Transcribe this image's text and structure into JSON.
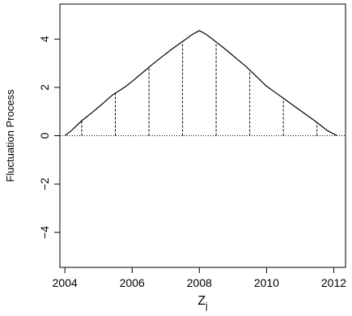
{
  "chart_data": {
    "type": "line",
    "title": "",
    "xlabel": "Z",
    "xlabel_subscript": "j",
    "ylabel": "Fluctuation Process",
    "xlim": [
      2003.85,
      2012.35
    ],
    "ylim": [
      -5.45,
      5.45
    ],
    "x_ticks": [
      2004,
      2006,
      2008,
      2010,
      2012
    ],
    "x_tick_labels": [
      "2004",
      "2006",
      "2008",
      "2010",
      "2012"
    ],
    "y_ticks": [
      -4,
      -2,
      0,
      2,
      4
    ],
    "y_tick_labels": [
      "−4",
      "−2",
      "0",
      "2",
      "4"
    ],
    "grid": false,
    "reference_line": {
      "y": 0,
      "style": "dotted"
    },
    "series": [
      {
        "x": [
          2004.0,
          2004.2,
          2004.5,
          2004.8,
          2005.1,
          2005.4,
          2005.6,
          2005.8,
          2006.0,
          2006.3,
          2006.6,
          2006.9,
          2007.2,
          2007.5,
          2007.8,
          2008.0,
          2008.2,
          2008.5,
          2008.8,
          2009.1,
          2009.4,
          2009.7,
          2010.0,
          2010.3,
          2010.6,
          2010.9,
          2011.2,
          2011.5,
          2011.8,
          2012.1
        ],
        "y": [
          0.0,
          0.22,
          0.62,
          0.95,
          1.3,
          1.67,
          1.85,
          2.03,
          2.25,
          2.6,
          2.95,
          3.28,
          3.6,
          3.9,
          4.2,
          4.35,
          4.2,
          3.88,
          3.55,
          3.2,
          2.85,
          2.45,
          2.05,
          1.75,
          1.45,
          1.15,
          0.85,
          0.55,
          0.22,
          0.0
        ]
      }
    ],
    "vertical_segments": {
      "style": "dashed",
      "x": [
        2004.5,
        2005.5,
        2006.5,
        2007.5,
        2008.5,
        2009.5,
        2010.5,
        2011.5
      ]
    }
  }
}
